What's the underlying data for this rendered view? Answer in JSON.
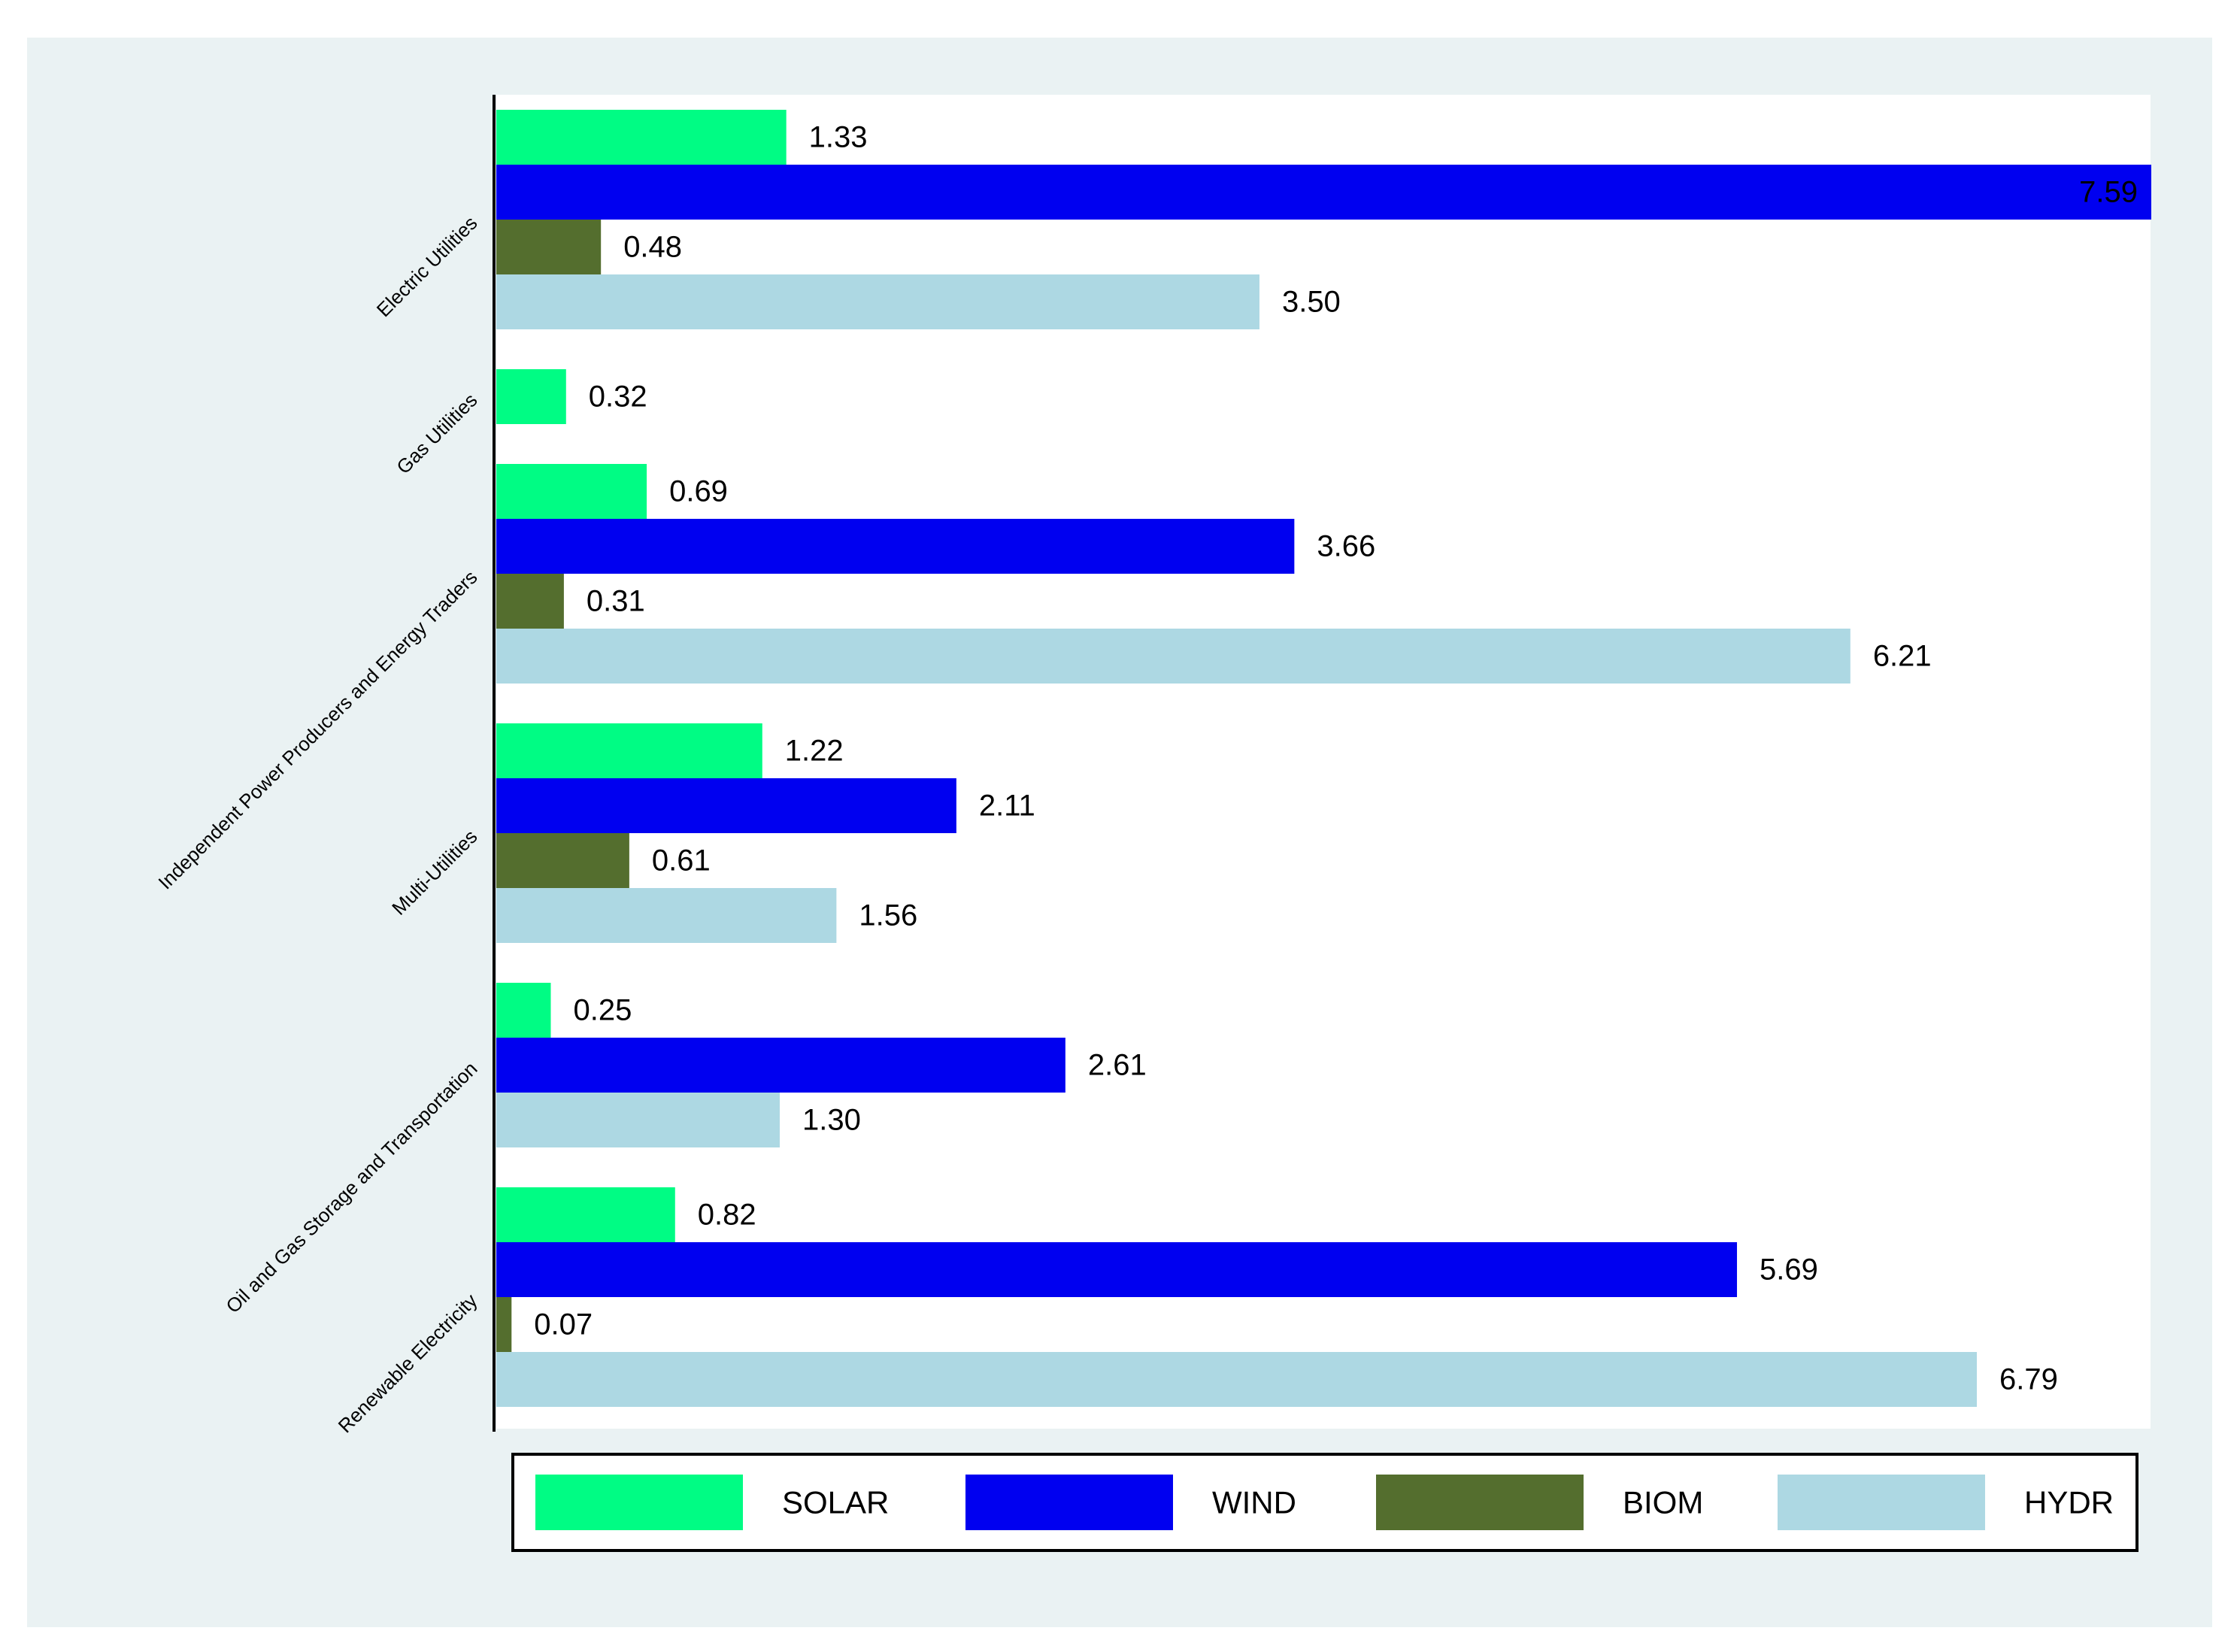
{
  "colors": {
    "outer_background": "#eaf2f3",
    "plot_background": "#ffffff",
    "axis_line": "#000000",
    "wide_bar_label": "#7a7a7a"
  },
  "chart_data": {
    "type": "bar",
    "orientation": "horizontal",
    "title": "",
    "xlabel": "",
    "ylabel": "",
    "xlim": [
      0,
      7.59
    ],
    "grid": false,
    "legend_position": "bottom",
    "value_format": "2 decimals",
    "series": [
      {
        "name": "SOLAR",
        "color": "#00fc84"
      },
      {
        "name": "WIND",
        "color": "#0000f0"
      },
      {
        "name": "BIOM",
        "color": "#546e2e"
      },
      {
        "name": "HYDR",
        "color": "#add8e3"
      }
    ],
    "categories": [
      {
        "name": "Electric Utilities",
        "bars": [
          {
            "series": "SOLAR",
            "value": 1.33,
            "label": "1.33"
          },
          {
            "series": "WIND",
            "value": 7.59,
            "label": "7.59"
          },
          {
            "series": "BIOM",
            "value": 0.48,
            "label": "0.48"
          },
          {
            "series": "HYDR",
            "value": 3.5,
            "label": "3.50"
          }
        ]
      },
      {
        "name": "Gas Utilities",
        "bars": [
          {
            "series": "SOLAR",
            "value": 0.32,
            "label": "0.32"
          }
        ]
      },
      {
        "name": "Independent Power Producers and Energy Traders",
        "bars": [
          {
            "series": "SOLAR",
            "value": 0.69,
            "label": "0.69"
          },
          {
            "series": "WIND",
            "value": 3.66,
            "label": "3.66"
          },
          {
            "series": "BIOM",
            "value": 0.31,
            "label": "0.31"
          },
          {
            "series": "HYDR",
            "value": 6.21,
            "label": "6.21"
          }
        ]
      },
      {
        "name": "Multi-Utilities",
        "bars": [
          {
            "series": "SOLAR",
            "value": 1.22,
            "label": "1.22"
          },
          {
            "series": "WIND",
            "value": 2.11,
            "label": "2.11"
          },
          {
            "series": "BIOM",
            "value": 0.61,
            "label": "0.61"
          },
          {
            "series": "HYDR",
            "value": 1.56,
            "label": "1.56"
          }
        ]
      },
      {
        "name": "Oil and Gas Storage and Transportation",
        "bars": [
          {
            "series": "SOLAR",
            "value": 0.25,
            "label": "0.25"
          },
          {
            "series": "WIND",
            "value": 2.61,
            "label": "2.61"
          },
          {
            "series": "HYDR",
            "value": 1.3,
            "label": "1.30"
          }
        ]
      },
      {
        "name": "Renewable Electricity",
        "bars": [
          {
            "series": "SOLAR",
            "value": 0.82,
            "label": "0.82"
          },
          {
            "series": "WIND",
            "value": 5.69,
            "label": "5.69"
          },
          {
            "series": "BIOM",
            "value": 0.07,
            "label": "0.07"
          },
          {
            "series": "HYDR",
            "value": 6.79,
            "label": "6.79"
          }
        ]
      }
    ]
  }
}
